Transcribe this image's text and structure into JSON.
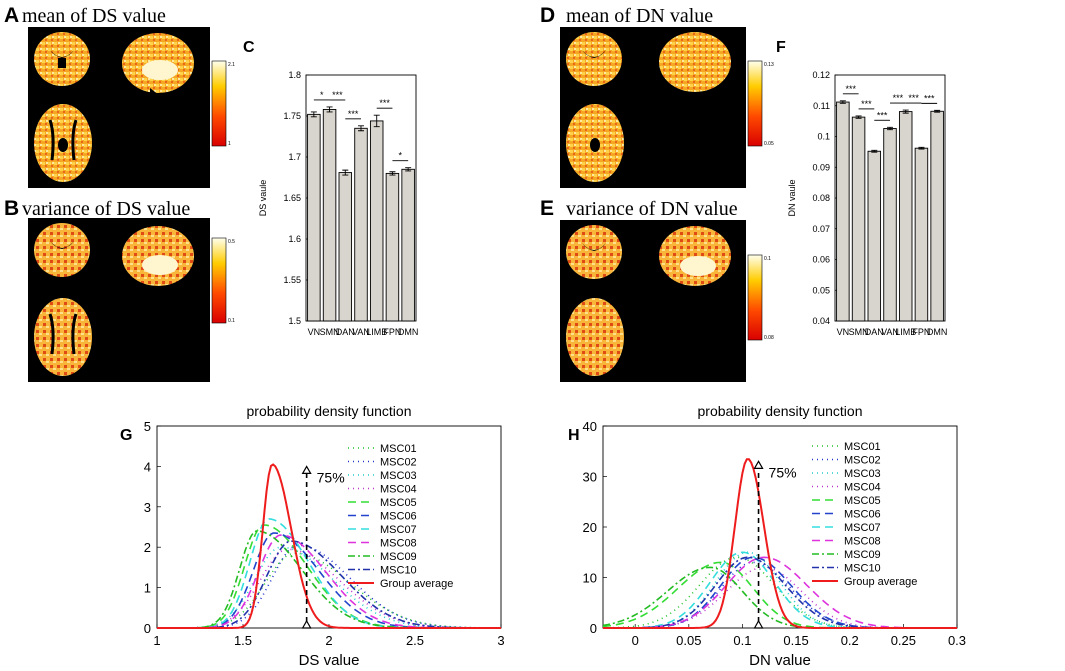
{
  "panels": {
    "A": {
      "letter": "A",
      "title": "mean of DS value",
      "colorbar": {
        "max": "2.1",
        "min": "1"
      }
    },
    "B": {
      "letter": "B",
      "title": "variance of DS value",
      "colorbar": {
        "max": "0.5",
        "min": "0.1"
      }
    },
    "D": {
      "letter": "D",
      "title": "mean of DN value",
      "colorbar": {
        "max": "0.13",
        "min": "0.05"
      }
    },
    "E": {
      "letter": "E",
      "title": "variance of DN value",
      "colorbar": {
        "max": "0.1",
        "min": "0.08"
      }
    },
    "C": {
      "letter": "C"
    },
    "F": {
      "letter": "F"
    },
    "G": {
      "letter": "G"
    },
    "H": {
      "letter": "H"
    }
  },
  "colors": {
    "bar_fill": "#d8d4ce",
    "group_line": "#ee1c1c",
    "background": "#ffffff",
    "brain_bg": "#000000"
  },
  "chart_data": [
    {
      "id": "C",
      "type": "bar",
      "ylabel": "DS vaule",
      "categories": [
        "VN",
        "SMN",
        "DAN",
        "VAN",
        "LIMB",
        "FPN",
        "DMN"
      ],
      "values": [
        1.752,
        1.758,
        1.681,
        1.735,
        1.744,
        1.68,
        1.685
      ],
      "errors": [
        0.003,
        0.003,
        0.003,
        0.003,
        0.007,
        0.002,
        0.002
      ],
      "ylim": [
        1.5,
        1.8
      ],
      "yticks": [
        "1.5",
        "1.55",
        "1.6",
        "1.65",
        "1.7",
        "1.75",
        "1.8"
      ],
      "significance": [
        {
          "from": 0,
          "to": 1,
          "label": "*"
        },
        {
          "from": 1,
          "to": 2,
          "label": "***"
        },
        {
          "from": 2,
          "to": 3,
          "label": "***"
        },
        {
          "from": 4,
          "to": 5,
          "label": "***"
        },
        {
          "from": 5,
          "to": 6,
          "label": "*"
        }
      ]
    },
    {
      "id": "F",
      "type": "bar",
      "ylabel": "DN vaule",
      "categories": [
        "VN",
        "SMN",
        "DAN",
        "VAN",
        "LIMB",
        "FPN",
        "DMN"
      ],
      "values": [
        0.1112,
        0.1063,
        0.0952,
        0.1026,
        0.1081,
        0.0962,
        0.1082
      ],
      "errors": [
        0.0004,
        0.0004,
        0.0003,
        0.0004,
        0.0005,
        0.0003,
        0.0003
      ],
      "ylim": [
        0.04,
        0.12
      ],
      "yticks": [
        "0.04",
        "0.05",
        "0.06",
        "0.07",
        "0.08",
        "0.09",
        "0.1",
        "0.11",
        "0.12"
      ],
      "significance": [
        {
          "from": 0,
          "to": 1,
          "label": "***"
        },
        {
          "from": 1,
          "to": 2,
          "label": "***"
        },
        {
          "from": 2,
          "to": 3,
          "label": "***"
        },
        {
          "from": 3,
          "to": 4,
          "label": "***"
        },
        {
          "from": 4,
          "to": 5,
          "label": "***"
        },
        {
          "from": 5,
          "to": 6,
          "label": "***"
        }
      ]
    },
    {
      "id": "G",
      "type": "line",
      "title": "probability density function",
      "xlabel": "DS value",
      "xlim": [
        1,
        3
      ],
      "ylim": [
        0,
        5
      ],
      "xticks": [
        "1",
        "1.5",
        "2",
        "2.5",
        "3"
      ],
      "yticks": [
        "0",
        "1",
        "2",
        "3",
        "4",
        "5"
      ],
      "marker": {
        "x": 1.87,
        "label": "75%",
        "top": 4.0
      },
      "series": [
        {
          "name": "MSC01",
          "peak_x": 1.8,
          "peak_y": 1.85,
          "sigma_left": 0.17,
          "sigma_right": 0.32,
          "color": "#22c32e",
          "dash": "1 4"
        },
        {
          "name": "MSC02",
          "peak_x": 1.82,
          "peak_y": 2.05,
          "sigma_left": 0.15,
          "sigma_right": 0.3,
          "color": "#2233cc",
          "dash": "1 4"
        },
        {
          "name": "MSC03",
          "peak_x": 1.72,
          "peak_y": 2.0,
          "sigma_left": 0.15,
          "sigma_right": 0.3,
          "color": "#22cccc",
          "dash": "1 4"
        },
        {
          "name": "MSC04",
          "peak_x": 1.76,
          "peak_y": 1.95,
          "sigma_left": 0.16,
          "sigma_right": 0.3,
          "color": "#bb33cc",
          "dash": "1 4"
        },
        {
          "name": "MSC05",
          "peak_x": 1.62,
          "peak_y": 2.55,
          "sigma_left": 0.11,
          "sigma_right": 0.25,
          "color": "#33dd33",
          "dash": "8 5"
        },
        {
          "name": "MSC06",
          "peak_x": 1.68,
          "peak_y": 2.35,
          "sigma_left": 0.12,
          "sigma_right": 0.26,
          "color": "#2244cc",
          "dash": "8 5"
        },
        {
          "name": "MSC07",
          "peak_x": 1.65,
          "peak_y": 2.7,
          "sigma_left": 0.11,
          "sigma_right": 0.23,
          "color": "#33dddd",
          "dash": "8 5"
        },
        {
          "name": "MSC08",
          "peak_x": 1.72,
          "peak_y": 2.3,
          "sigma_left": 0.13,
          "sigma_right": 0.26,
          "color": "#dd33dd",
          "dash": "8 5"
        },
        {
          "name": "MSC09",
          "peak_x": 1.58,
          "peak_y": 2.4,
          "sigma_left": 0.1,
          "sigma_right": 0.26,
          "color": "#22bb22",
          "dash": "7 3 2 3"
        },
        {
          "name": "MSC10",
          "peak_x": 1.78,
          "peak_y": 2.15,
          "sigma_left": 0.14,
          "sigma_right": 0.29,
          "color": "#2233aa",
          "dash": "7 3 2 3"
        },
        {
          "name": "Group average",
          "peak_x": 1.67,
          "peak_y": 4.05,
          "sigma_left": 0.055,
          "sigma_right": 0.11,
          "color": "#ee1c1c",
          "dash": ""
        }
      ]
    },
    {
      "id": "H",
      "type": "line",
      "title": "probability density function",
      "xlabel": "DN value",
      "xlim": [
        -0.03,
        0.3
      ],
      "ylim": [
        0,
        40
      ],
      "xticks": [
        "0",
        "0.05",
        "0.1",
        "0.15",
        "0.2",
        "0.25",
        "0.3"
      ],
      "yticks": [
        "0",
        "10",
        "20",
        "30",
        "40"
      ],
      "marker": {
        "x": 0.115,
        "label": "75%",
        "top": 33
      },
      "series": [
        {
          "name": "MSC01",
          "peak_x": 0.095,
          "peak_y": 14,
          "sigma_left": 0.035,
          "sigma_right": 0.035,
          "color": "#22c32e",
          "dash": "1 4"
        },
        {
          "name": "MSC02",
          "peak_x": 0.11,
          "peak_y": 13,
          "sigma_left": 0.03,
          "sigma_right": 0.035,
          "color": "#2233cc",
          "dash": "1 4"
        },
        {
          "name": "MSC03",
          "peak_x": 0.105,
          "peak_y": 15,
          "sigma_left": 0.03,
          "sigma_right": 0.03,
          "color": "#22cccc",
          "dash": "1 4"
        },
        {
          "name": "MSC04",
          "peak_x": 0.12,
          "peak_y": 12,
          "sigma_left": 0.035,
          "sigma_right": 0.035,
          "color": "#bb33cc",
          "dash": "1 4"
        },
        {
          "name": "MSC05",
          "peak_x": 0.08,
          "peak_y": 13,
          "sigma_left": 0.04,
          "sigma_right": 0.03,
          "color": "#33dd33",
          "dash": "8 5"
        },
        {
          "name": "MSC06",
          "peak_x": 0.11,
          "peak_y": 14,
          "sigma_left": 0.03,
          "sigma_right": 0.035,
          "color": "#2244cc",
          "dash": "8 5"
        },
        {
          "name": "MSC07",
          "peak_x": 0.1,
          "peak_y": 15,
          "sigma_left": 0.03,
          "sigma_right": 0.03,
          "color": "#33dddd",
          "dash": "8 5"
        },
        {
          "name": "MSC08",
          "peak_x": 0.12,
          "peak_y": 14,
          "sigma_left": 0.035,
          "sigma_right": 0.04,
          "color": "#dd33dd",
          "dash": "8 5"
        },
        {
          "name": "MSC09",
          "peak_x": 0.07,
          "peak_y": 12,
          "sigma_left": 0.04,
          "sigma_right": 0.03,
          "color": "#22bb22",
          "dash": "7 3 2 3"
        },
        {
          "name": "MSC10",
          "peak_x": 0.105,
          "peak_y": 14,
          "sigma_left": 0.03,
          "sigma_right": 0.035,
          "color": "#2233aa",
          "dash": "7 3 2 3"
        },
        {
          "name": "Group average",
          "peak_x": 0.105,
          "peak_y": 33.5,
          "sigma_left": 0.012,
          "sigma_right": 0.015,
          "color": "#ee1c1c",
          "dash": ""
        }
      ]
    }
  ]
}
